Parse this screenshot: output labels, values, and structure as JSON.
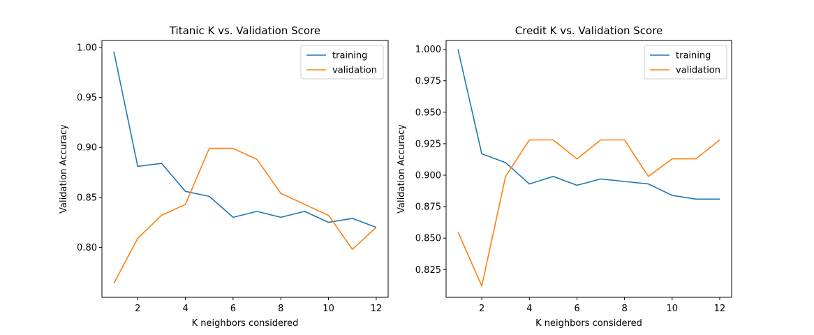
{
  "chart_data": [
    {
      "type": "line",
      "title": "Titanic K vs. Validation Score",
      "xlabel": "K neighbors considered",
      "ylabel": "Validation Accuracy",
      "x": [
        1,
        2,
        3,
        4,
        5,
        6,
        7,
        8,
        9,
        10,
        11,
        12
      ],
      "xlim": [
        0.5,
        12.5
      ],
      "ylim": [
        0.75,
        1.007
      ],
      "xticks": [
        2,
        4,
        6,
        8,
        10,
        12
      ],
      "yticks": [
        0.8,
        0.85,
        0.9,
        0.95,
        1.0
      ],
      "ytick_labels": [
        "0.80",
        "0.85",
        "0.90",
        "0.95",
        "1.00"
      ],
      "legend_position": "top-right",
      "series": [
        {
          "name": "training",
          "color": "#1f77b4",
          "values": [
            0.996,
            0.881,
            0.884,
            0.856,
            0.851,
            0.83,
            0.836,
            0.83,
            0.836,
            0.825,
            0.829,
            0.82
          ]
        },
        {
          "name": "validation",
          "color": "#ff7f0e",
          "values": [
            0.764,
            0.809,
            0.832,
            0.843,
            0.899,
            0.899,
            0.888,
            0.854,
            0.843,
            0.832,
            0.798,
            0.82
          ]
        }
      ]
    },
    {
      "type": "line",
      "title": "Credit K vs. Validation Score",
      "xlabel": "K neighbors considered",
      "ylabel": "Validation Accuracy",
      "x": [
        1,
        2,
        3,
        4,
        5,
        6,
        7,
        8,
        9,
        10,
        11,
        12
      ],
      "xlim": [
        0.5,
        12.5
      ],
      "ylim": [
        0.803,
        1.007
      ],
      "xticks": [
        2,
        4,
        6,
        8,
        10,
        12
      ],
      "yticks": [
        0.825,
        0.85,
        0.875,
        0.9,
        0.925,
        0.95,
        0.975,
        1.0
      ],
      "ytick_labels": [
        "0.825",
        "0.850",
        "0.875",
        "0.900",
        "0.925",
        "0.950",
        "0.975",
        "1.000"
      ],
      "legend_position": "top-right",
      "series": [
        {
          "name": "training",
          "color": "#1f77b4",
          "values": [
            1.0,
            0.917,
            0.91,
            0.893,
            0.899,
            0.892,
            0.897,
            0.895,
            0.893,
            0.884,
            0.881,
            0.881
          ]
        },
        {
          "name": "validation",
          "color": "#ff7f0e",
          "values": [
            0.855,
            0.812,
            0.899,
            0.928,
            0.928,
            0.913,
            0.928,
            0.928,
            0.899,
            0.913,
            0.913,
            0.928
          ]
        }
      ]
    }
  ]
}
